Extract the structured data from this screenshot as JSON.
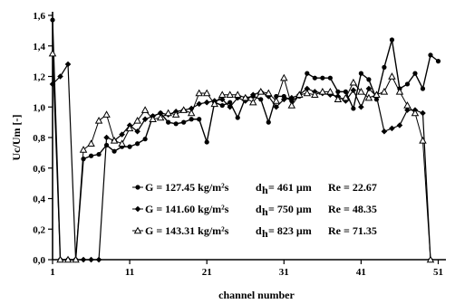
{
  "chart_data": {
    "type": "line",
    "xlabel": "channel number",
    "ylabel": "Uc/Um [-]",
    "xlim": [
      1,
      52
    ],
    "ylim": [
      0,
      1.6
    ],
    "x_ticks": [
      "1",
      "11",
      "21",
      "31",
      "41",
      "51"
    ],
    "y_ticks": [
      "0,0",
      "0,2",
      "0,4",
      "0,6",
      "0,8",
      "1,0",
      "1,2",
      "1,4",
      "1,6"
    ],
    "grid": false,
    "legend_position": "bottom-center",
    "x": [
      1,
      2,
      3,
      4,
      5,
      6,
      7,
      8,
      9,
      10,
      11,
      12,
      13,
      14,
      15,
      16,
      17,
      18,
      19,
      20,
      21,
      22,
      23,
      24,
      25,
      26,
      27,
      28,
      29,
      30,
      31,
      32,
      33,
      34,
      35,
      36,
      37,
      38,
      39,
      40,
      41,
      42,
      43,
      44,
      45,
      46,
      47,
      48,
      49,
      50,
      51,
      52
    ],
    "series": [
      {
        "legend": {
          "g": "G = 127.45 kg/m²s",
          "d": "d",
          "dsub": "h",
          "dval": "= 461 µm",
          "re": "Re = 22.67"
        },
        "marker": "circle",
        "values": [
          1.57,
          0.0,
          0.0,
          0.0,
          0.66,
          0.68,
          0.69,
          0.75,
          0.71,
          0.74,
          0.74,
          0.76,
          0.79,
          0.94,
          0.96,
          0.9,
          0.89,
          0.9,
          0.92,
          0.92,
          0.77,
          1.03,
          1.01,
          1.03,
          0.93,
          1.06,
          1.07,
          1.05,
          0.9,
          1.07,
          1.07,
          1.04,
          1.07,
          1.22,
          1.19,
          1.19,
          1.19,
          1.1,
          1.1,
          0.99,
          1.22,
          1.18,
          1.05,
          1.26,
          1.44,
          1.12,
          1.15,
          1.22,
          1.12,
          1.34,
          1.3,
          null
        ]
      },
      {
        "legend": {
          "g": "G = 141.60 kg/m²s",
          "d": "d",
          "dsub": "h",
          "dval": "= 750 µm",
          "re": "Re = 48.35"
        },
        "marker": "diamond",
        "values": [
          1.15,
          1.2,
          1.28,
          0.0,
          0.0,
          0.0,
          0.0,
          0.8,
          0.78,
          0.82,
          0.88,
          0.84,
          0.92,
          0.94,
          0.96,
          0.95,
          0.97,
          0.98,
          0.99,
          1.02,
          1.03,
          1.04,
          1.05,
          1.0,
          1.06,
          1.04,
          1.08,
          1.1,
          1.07,
          1.0,
          1.05,
          1.06,
          1.08,
          1.12,
          1.1,
          1.09,
          1.08,
          1.07,
          1.04,
          1.11,
          1.0,
          1.12,
          1.07,
          0.84,
          0.86,
          0.88,
          0.98,
          0.98,
          0.96,
          0.0,
          null,
          null
        ]
      },
      {
        "legend": {
          "g": "G = 143.31 kg/m²s",
          "d": "d",
          "dsub": "h",
          "dval": "= 823 µm",
          "re": "Re = 71.35"
        },
        "marker": "triangle",
        "values": [
          1.35,
          0.0,
          0.0,
          0.0,
          0.72,
          0.76,
          0.91,
          0.95,
          0.78,
          0.76,
          0.86,
          0.91,
          0.98,
          0.92,
          0.93,
          0.96,
          0.95,
          0.98,
          0.96,
          1.09,
          1.09,
          1.02,
          1.08,
          1.08,
          1.08,
          1.06,
          1.03,
          1.1,
          1.09,
          1.04,
          1.19,
          1.01,
          1.08,
          1.09,
          1.08,
          1.1,
          1.1,
          1.05,
          1.06,
          1.16,
          1.1,
          1.06,
          1.08,
          1.1,
          1.2,
          1.1,
          1.01,
          0.96,
          0.78,
          0.0,
          null,
          null
        ]
      }
    ]
  }
}
